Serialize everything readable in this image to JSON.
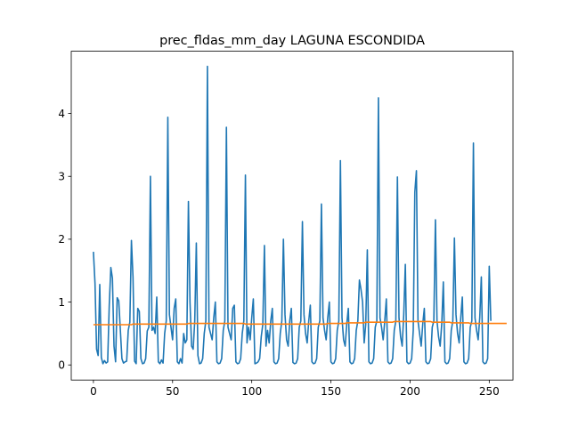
{
  "chart_data": {
    "type": "line",
    "title": "prec_fldas_mm_day LAGUNA ESCONDIDA",
    "xlabel": "",
    "ylabel": "",
    "xlim": [
      -14,
      265
    ],
    "ylim": [
      -0.24,
      4.99
    ],
    "xticks": [
      0,
      50,
      100,
      150,
      200,
      250
    ],
    "yticks": [
      0,
      1,
      2,
      3,
      4
    ],
    "grid": false,
    "series": [
      {
        "color": "#1f77b4",
        "values": [
          1.8,
          1.3,
          0.25,
          0.15,
          1.28,
          0.12,
          0.02,
          0.07,
          0.03,
          0.05,
          0.95,
          1.55,
          1.38,
          0.3,
          0.05,
          1.07,
          1.02,
          0.56,
          0.1,
          0.03,
          0.05,
          0.06,
          0.55,
          0.68,
          1.98,
          1.4,
          0.06,
          0.02,
          0.9,
          0.85,
          0.1,
          0.02,
          0.03,
          0.1,
          0.54,
          0.6,
          3.0,
          0.55,
          0.6,
          0.5,
          1.08,
          0.05,
          0.02,
          0.08,
          0.03,
          0.5,
          0.7,
          3.94,
          0.8,
          0.6,
          0.4,
          0.9,
          1.05,
          0.05,
          0.02,
          0.1,
          0.03,
          0.5,
          0.35,
          0.4,
          2.6,
          1.0,
          0.3,
          0.25,
          0.7,
          1.94,
          0.15,
          0.02,
          0.03,
          0.1,
          0.5,
          0.7,
          4.75,
          0.6,
          0.5,
          0.4,
          0.75,
          1.0,
          0.05,
          0.02,
          0.03,
          0.1,
          0.55,
          0.7,
          3.78,
          0.6,
          0.5,
          0.4,
          0.9,
          0.95,
          0.05,
          0.02,
          0.03,
          0.1,
          0.5,
          0.7,
          3.02,
          0.35,
          0.6,
          0.4,
          0.75,
          1.05,
          0.02,
          0.03,
          0.05,
          0.1,
          0.45,
          0.65,
          1.9,
          0.3,
          0.55,
          0.35,
          0.7,
          0.9,
          0.05,
          0.02,
          0.03,
          0.1,
          0.5,
          0.7,
          2.0,
          0.8,
          0.4,
          0.3,
          0.7,
          0.9,
          0.04,
          0.02,
          0.03,
          0.1,
          0.6,
          0.7,
          2.28,
          0.8,
          0.5,
          0.35,
          0.7,
          0.95,
          0.05,
          0.02,
          0.03,
          0.1,
          0.6,
          0.7,
          2.56,
          0.75,
          0.55,
          0.4,
          0.75,
          1.0,
          0.05,
          0.02,
          0.03,
          0.1,
          0.55,
          0.7,
          3.25,
          0.75,
          0.4,
          0.3,
          0.65,
          0.9,
          0.05,
          0.02,
          0.03,
          0.1,
          0.55,
          0.7,
          1.35,
          1.2,
          1.0,
          0.35,
          0.65,
          1.83,
          0.05,
          0.02,
          0.03,
          0.1,
          0.6,
          0.7,
          4.25,
          0.75,
          0.6,
          0.4,
          0.7,
          1.05,
          0.05,
          0.02,
          0.03,
          0.1,
          0.55,
          0.7,
          2.99,
          0.75,
          0.45,
          0.3,
          0.8,
          1.6,
          0.05,
          0.02,
          0.03,
          0.1,
          0.55,
          2.75,
          3.09,
          0.7,
          0.5,
          0.3,
          0.65,
          0.9,
          0.05,
          0.02,
          0.03,
          0.1,
          0.6,
          0.7,
          2.31,
          0.7,
          0.45,
          0.3,
          0.65,
          1.32,
          0.05,
          0.02,
          0.03,
          0.1,
          0.55,
          0.7,
          2.02,
          0.8,
          0.5,
          0.35,
          0.75,
          1.08,
          0.05,
          0.02,
          0.03,
          0.1,
          0.6,
          0.7,
          3.53,
          0.75,
          0.55,
          0.4,
          0.75,
          1.4,
          0.05,
          0.02,
          0.03,
          0.1,
          1.57,
          0.7
        ]
      },
      {
        "color": "#ff7f0e",
        "values": [
          0.64,
          0.64,
          0.64,
          0.64,
          0.64,
          0.64,
          0.64,
          0.64,
          0.64,
          0.64,
          0.64,
          0.64,
          0.64,
          0.64,
          0.64,
          0.64,
          0.64,
          0.64,
          0.64,
          0.64,
          0.64,
          0.64,
          0.64,
          0.64,
          0.64,
          0.65,
          0.65,
          0.65,
          0.65,
          0.65,
          0.65,
          0.65,
          0.65,
          0.65,
          0.65,
          0.65,
          0.65,
          0.65,
          0.65,
          0.65,
          0.65,
          0.65,
          0.65,
          0.65,
          0.65,
          0.65,
          0.65,
          0.65,
          0.65,
          0.65,
          0.65,
          0.65,
          0.65,
          0.65,
          0.65,
          0.65,
          0.65,
          0.65,
          0.65,
          0.65,
          0.66,
          0.66,
          0.66,
          0.66,
          0.66,
          0.66,
          0.66,
          0.66,
          0.66,
          0.66,
          0.66,
          0.66,
          0.66,
          0.66,
          0.66,
          0.66,
          0.66,
          0.66,
          0.66,
          0.66,
          0.66,
          0.66,
          0.66,
          0.66,
          0.66,
          0.66,
          0.66,
          0.66,
          0.66,
          0.66,
          0.66,
          0.66,
          0.66,
          0.66,
          0.66,
          0.66,
          0.65,
          0.65,
          0.65,
          0.65,
          0.65,
          0.65,
          0.65,
          0.65,
          0.65,
          0.65,
          0.65,
          0.65,
          0.65,
          0.65,
          0.65,
          0.65,
          0.65,
          0.65,
          0.65,
          0.65,
          0.65,
          0.65,
          0.65,
          0.65,
          0.65,
          0.65,
          0.65,
          0.65,
          0.65,
          0.65,
          0.65,
          0.65,
          0.65,
          0.65,
          0.65,
          0.65,
          0.65,
          0.65,
          0.65,
          0.65,
          0.65,
          0.65,
          0.65,
          0.65,
          0.65,
          0.65,
          0.65,
          0.65,
          0.65,
          0.65,
          0.65,
          0.65,
          0.66,
          0.66,
          0.66,
          0.66,
          0.66,
          0.66,
          0.66,
          0.66,
          0.66,
          0.66,
          0.66,
          0.66,
          0.67,
          0.67,
          0.67,
          0.67,
          0.67,
          0.67,
          0.67,
          0.67,
          0.67,
          0.67,
          0.67,
          0.67,
          0.68,
          0.68,
          0.68,
          0.68,
          0.68,
          0.68,
          0.68,
          0.68,
          0.68,
          0.68,
          0.68,
          0.68,
          0.68,
          0.68,
          0.68,
          0.68,
          0.68,
          0.68,
          0.69,
          0.69,
          0.69,
          0.69,
          0.69,
          0.69,
          0.69,
          0.69,
          0.69,
          0.69,
          0.69,
          0.69,
          0.69,
          0.69,
          0.69,
          0.69,
          0.69,
          0.69,
          0.69,
          0.69,
          0.69,
          0.69,
          0.69,
          0.69,
          0.68,
          0.68,
          0.68,
          0.68,
          0.68,
          0.68,
          0.68,
          0.68,
          0.68,
          0.68,
          0.68,
          0.68,
          0.67,
          0.67,
          0.67,
          0.67,
          0.67,
          0.67,
          0.67,
          0.67,
          0.67,
          0.67,
          0.67,
          0.67,
          0.66,
          0.66,
          0.66,
          0.66,
          0.66,
          0.66,
          0.66,
          0.66,
          0.66,
          0.66,
          0.66,
          0.66,
          0.66,
          0.66,
          0.66,
          0.66,
          0.66,
          0.66,
          0.66,
          0.66,
          0.66,
          0.66,
          0.66,
          0.66
        ]
      }
    ]
  }
}
